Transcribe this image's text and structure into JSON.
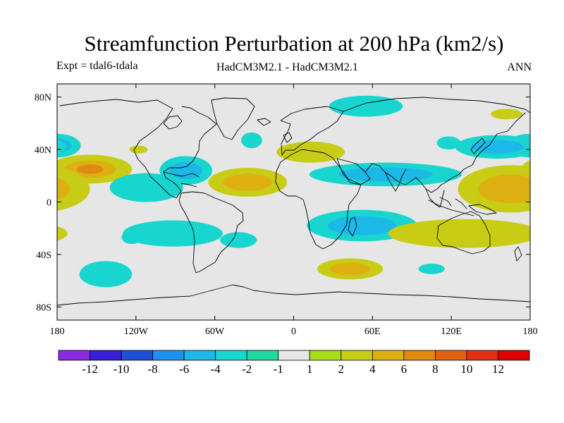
{
  "title": "Streamfunction Perturbation at 200 hPa (km2/s)",
  "left_subtitle": "Expt = tdal6-tdala",
  "center_subtitle": "HadCM3M2.1 - HadCM3M2.1",
  "right_subtitle": "ANN",
  "colors": {
    "background": "#e6e6e6",
    "coast": "#000000"
  },
  "axes": {
    "x_ticks": [
      "180",
      "120W",
      "60W",
      "0",
      "60E",
      "120E",
      "180"
    ],
    "y_ticks": [
      "80N",
      "40N",
      "0",
      "40S",
      "80S"
    ]
  },
  "colorbar": {
    "labels": [
      "-12",
      "-10",
      "-8",
      "-6",
      "-4",
      "-2",
      "-1",
      "1",
      "2",
      "4",
      "6",
      "8",
      "10",
      "12"
    ],
    "colors": [
      "#8a2be2",
      "#3a1fd8",
      "#1f4fd8",
      "#1e90ee",
      "#1cb8e8",
      "#18d6cf",
      "#20d8a0",
      "#e6e6e6",
      "#a6dc18",
      "#c8cc14",
      "#ddb012",
      "#e08a12",
      "#e06012",
      "#e03012",
      "#e00000"
    ]
  },
  "anomalies": [
    {
      "name": "north-pacific-ne-blob",
      "lon": -180,
      "lat": 43,
      "rx": 18,
      "ry": 9,
      "level": "-2",
      "inner": "-4"
    },
    {
      "name": "north-pacific-positive",
      "lon": -155,
      "lat": 25,
      "rx": 32,
      "ry": 11,
      "level": "2",
      "inner": "4",
      "core": "6"
    },
    {
      "name": "tropical-pacific-negative",
      "lon": -112,
      "lat": 11,
      "rx": 28,
      "ry": 11,
      "level": "-2"
    },
    {
      "name": "north-america-small-positive",
      "lon": -118,
      "lat": 40,
      "rx": 7,
      "ry": 3,
      "level": "2"
    },
    {
      "name": "central-america-negative",
      "lon": -82,
      "lat": 24,
      "rx": 20,
      "ry": 11,
      "level": "-2",
      "inner": "-4"
    },
    {
      "name": "north-atlantic-negative",
      "lon": -32,
      "lat": 47,
      "rx": 8,
      "ry": 6,
      "level": "-2"
    },
    {
      "name": "greenland-negative",
      "lon": 55,
      "lat": 73,
      "rx": 28,
      "ry": 8,
      "level": "-2"
    },
    {
      "name": "south-america-west-negative",
      "lon": -92,
      "lat": -24,
      "rx": 38,
      "ry": 10,
      "level": "-2"
    },
    {
      "name": "south-pacific-small-negative",
      "lon": -123,
      "lat": -27,
      "rx": 8,
      "ry": 5,
      "level": "-2"
    },
    {
      "name": "south-atlantic-negative",
      "lon": -42,
      "lat": -29,
      "rx": 14,
      "ry": 6,
      "level": "-2"
    },
    {
      "name": "atlantic-positive",
      "lon": -35,
      "lat": 15,
      "rx": 30,
      "ry": 11,
      "level": "2",
      "inner": "4"
    },
    {
      "name": "asia-tropical-negative",
      "lon": 70,
      "lat": 21,
      "rx": 58,
      "ry": 9,
      "level": "-2",
      "inner": "-4"
    },
    {
      "name": "mediterranean-positive",
      "lon": 13,
      "lat": 38,
      "rx": 26,
      "ry": 8,
      "level": "2"
    },
    {
      "name": "south-africa-negative",
      "lon": 52,
      "lat": -18,
      "rx": 42,
      "ry": 12,
      "level": "-2",
      "inner": "-4"
    },
    {
      "name": "south-indian-positive",
      "lon": 43,
      "lat": -51,
      "rx": 25,
      "ry": 8,
      "level": "2",
      "inner": "4"
    },
    {
      "name": "southern-ocean-negative",
      "lon": -143,
      "lat": -55,
      "rx": 20,
      "ry": 10,
      "level": "-2"
    },
    {
      "name": "southern-ocean-small-negative",
      "lon": 105,
      "lat": -51,
      "rx": 10,
      "ry": 4,
      "level": "-2"
    },
    {
      "name": "australia-positive",
      "lon": 130,
      "lat": -24,
      "rx": 58,
      "ry": 11,
      "level": "2"
    },
    {
      "name": "west-pacific-positive",
      "lon": 165,
      "lat": 10,
      "rx": 40,
      "ry": 18,
      "level": "2",
      "inner": "4"
    },
    {
      "name": "nw-pacific-negative",
      "lon": 155,
      "lat": 42,
      "rx": 32,
      "ry": 9,
      "level": "-2",
      "inner": "-4"
    },
    {
      "name": "central-asia-small-negative",
      "lon": 118,
      "lat": 45,
      "rx": 9,
      "ry": 5,
      "level": "-2"
    },
    {
      "name": "siberia-positive",
      "lon": 162,
      "lat": 67,
      "rx": 12,
      "ry": 4,
      "level": "2"
    }
  ]
}
